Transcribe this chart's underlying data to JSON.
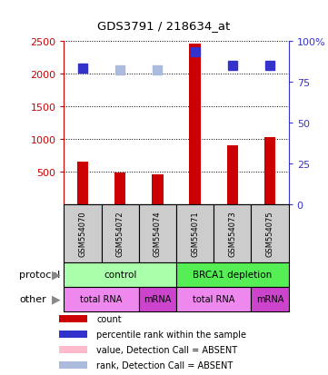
{
  "title": "GDS3791 / 218634_at",
  "samples": [
    "GSM554070",
    "GSM554072",
    "GSM554074",
    "GSM554071",
    "GSM554073",
    "GSM554075"
  ],
  "count_values": [
    650,
    475,
    450,
    2450,
    900,
    1020
  ],
  "rank_values": [
    83,
    82,
    82,
    93,
    85,
    85
  ],
  "count_absent": [
    false,
    false,
    false,
    false,
    false,
    false
  ],
  "rank_absent": [
    false,
    true,
    true,
    false,
    false,
    false
  ],
  "ylim_left": [
    0,
    2500
  ],
  "ylim_right": [
    0,
    100
  ],
  "yticks_left": [
    500,
    1000,
    1500,
    2000,
    2500
  ],
  "yticks_right": [
    0,
    25,
    50,
    75,
    100
  ],
  "ytick_right_labels": [
    "0",
    "25",
    "50",
    "75",
    "100%"
  ],
  "left_axis_color": "#cc0000",
  "right_axis_color": "#3333cc",
  "bar_color": "#cc0000",
  "bar_absent_color": "#ffbbbb",
  "rank_color": "#3333cc",
  "rank_absent_color": "#aabbdd",
  "protocol_groups": [
    {
      "label": "control",
      "start": 0,
      "end": 3,
      "color": "#aaffaa"
    },
    {
      "label": "BRCA1 depletion",
      "start": 3,
      "end": 6,
      "color": "#55ee55"
    }
  ],
  "other_groups": [
    {
      "label": "total RNA",
      "start": 0,
      "end": 2,
      "color": "#ee88ee"
    },
    {
      "label": "mRNA",
      "start": 2,
      "end": 3,
      "color": "#cc44cc"
    },
    {
      "label": "total RNA",
      "start": 3,
      "end": 5,
      "color": "#ee88ee"
    },
    {
      "label": "mRNA",
      "start": 5,
      "end": 6,
      "color": "#cc44cc"
    }
  ],
  "protocol_label": "protocol",
  "other_label": "other",
  "legend_items": [
    {
      "label": "count",
      "color": "#cc0000"
    },
    {
      "label": "percentile rank within the sample",
      "color": "#3333cc"
    },
    {
      "label": "value, Detection Call = ABSENT",
      "color": "#ffbbcc"
    },
    {
      "label": "rank, Detection Call = ABSENT",
      "color": "#aabbdd"
    }
  ],
  "bar_width": 0.3,
  "rank_marker_size": 7,
  "background_color": "#ffffff",
  "sample_box_color": "#cccccc",
  "grid_color": "#000000",
  "fig_width": 3.61,
  "fig_height": 4.14,
  "fig_dpi": 100
}
